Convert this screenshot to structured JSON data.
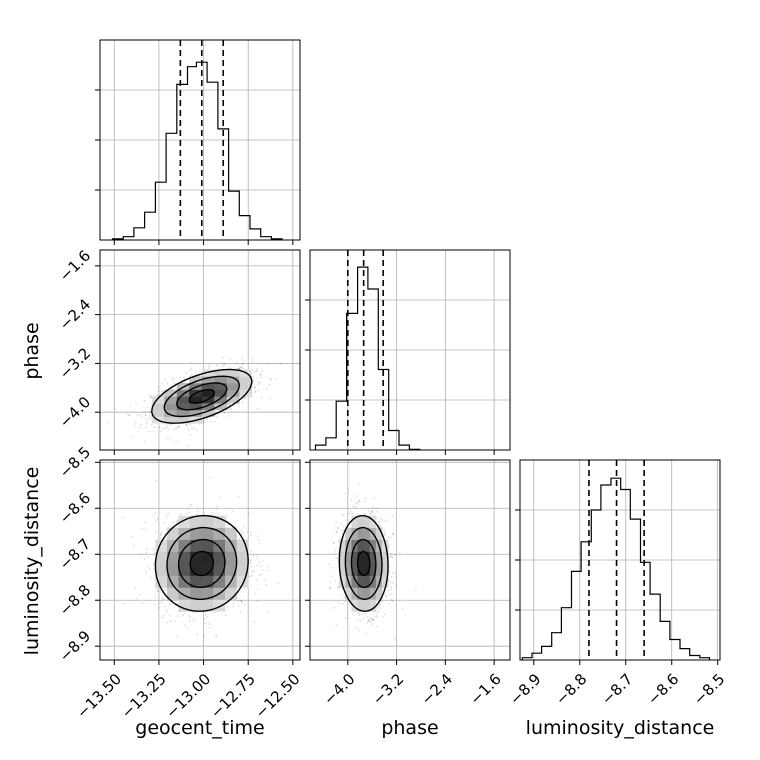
{
  "chart_data": {
    "type": "corner",
    "parameters": [
      "geocent_time",
      "phase",
      "luminosity_distance"
    ],
    "axis_labels": {
      "x_bottom": [
        "geocent_time",
        "phase",
        "luminosity_distance"
      ],
      "y_left": [
        "phase",
        "luminosity_distance"
      ]
    },
    "grid": true,
    "ranges": {
      "geocent_time": [
        -13.58,
        -12.46
      ],
      "phase": [
        -4.62,
        -1.34
      ],
      "luminosity_distance": [
        -8.93,
        -8.495
      ]
    },
    "ticks": {
      "geocent_time": {
        "values": [
          -13.5,
          -13.25,
          -13.0,
          -12.75,
          -12.5
        ],
        "labels": [
          "−13.50",
          "−13.25",
          "−13.00",
          "−12.75",
          "−12.50"
        ]
      },
      "phase": {
        "values": [
          -4.0,
          -3.2,
          -2.4,
          -1.6
        ],
        "labels": [
          "−4.0",
          "−3.2",
          "−2.4",
          "−1.6"
        ]
      },
      "luminosity_distance": {
        "values": [
          -8.9,
          -8.8,
          -8.7,
          -8.6,
          -8.5
        ],
        "labels": [
          "−8.9",
          "−8.8",
          "−8.7",
          "−8.6",
          "−8.5"
        ]
      }
    },
    "histograms": [
      {
        "parameter": "geocent_time",
        "bin_edges": [
          -13.51,
          -13.45,
          -13.39,
          -13.33,
          -13.27,
          -13.21,
          -13.15,
          -13.09,
          -13.04,
          -12.98,
          -12.92,
          -12.86,
          -12.8,
          -12.74,
          -12.68,
          -12.62,
          -12.56
        ],
        "counts": [
          0.5,
          1.5,
          5.5,
          12.5,
          26,
          48,
          70,
          78,
          80,
          71,
          50,
          22,
          11,
          5,
          1.5,
          0.5
        ],
        "ymax": 90,
        "quantiles": [
          -13.13,
          -13.01,
          -12.89
        ]
      },
      {
        "parameter": "phase",
        "bin_edges": [
          -4.53,
          -4.36,
          -4.19,
          -4.02,
          -3.84,
          -3.67,
          -3.5,
          -3.33,
          -3.16,
          -2.99,
          -2.82
        ],
        "counts": [
          2,
          5,
          20,
          56,
          75,
          66,
          33,
          8,
          2,
          0.3
        ],
        "ymax": 82,
        "quantiles": [
          -4.0,
          -3.74,
          -3.42
        ]
      },
      {
        "parameter": "luminosity_distance",
        "bin_edges": [
          -8.925,
          -8.904,
          -8.883,
          -8.861,
          -8.84,
          -8.818,
          -8.797,
          -8.775,
          -8.754,
          -8.732,
          -8.711,
          -8.69,
          -8.668,
          -8.647,
          -8.625,
          -8.604,
          -8.582,
          -8.561,
          -8.539,
          -8.518
        ],
        "counts": [
          1,
          3,
          6,
          12,
          23,
          39,
          52,
          66,
          77,
          80,
          75,
          62,
          43,
          29,
          17,
          9,
          5,
          2,
          1
        ],
        "ymax": 88,
        "quantiles": [
          -8.78,
          -8.72,
          -8.66
        ]
      }
    ],
    "contours_2d": [
      {
        "x": "geocent_time",
        "y": "phase",
        "center": [
          -13.01,
          -3.74
        ],
        "sigma": [
          0.14,
          0.22
        ],
        "rho": 0.55
      },
      {
        "x": "geocent_time",
        "y": "luminosity_distance",
        "center": [
          -13.01,
          -8.72
        ],
        "sigma": [
          0.13,
          0.052
        ],
        "rho": 0.05
      },
      {
        "x": "phase",
        "y": "luminosity_distance",
        "center": [
          -3.74,
          -8.72
        ],
        "sigma": [
          0.2,
          0.052
        ],
        "rho": -0.05
      }
    ]
  }
}
